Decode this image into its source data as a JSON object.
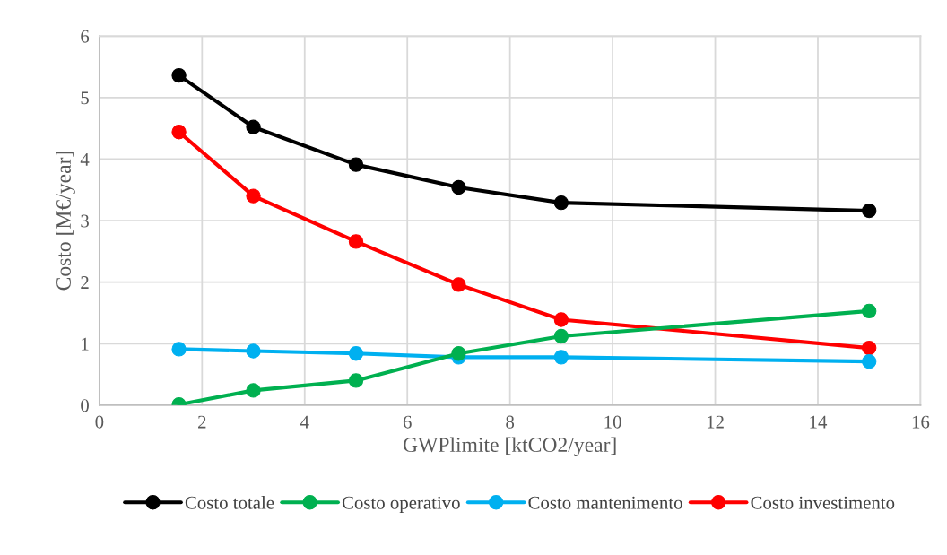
{
  "chart_data": {
    "type": "line",
    "xlabel": "GWPlimite [ktCO2/year]",
    "ylabel": "Costo [M€/year]",
    "x": [
      1.55,
      3,
      5,
      7,
      9,
      15
    ],
    "series": [
      {
        "name": "Costo totale",
        "color": "#000000",
        "values": [
          5.36,
          4.52,
          3.91,
          3.54,
          3.29,
          3.16
        ]
      },
      {
        "name": "Costo operativo",
        "color": "#00b050",
        "values": [
          0.01,
          0.24,
          0.4,
          0.84,
          1.12,
          1.53
        ]
      },
      {
        "name": "Costo mantenimento",
        "color": "#00b0f0",
        "values": [
          0.91,
          0.88,
          0.84,
          0.78,
          0.78,
          0.71
        ]
      },
      {
        "name": "Costo investimento",
        "color": "#ff0000",
        "values": [
          4.44,
          3.4,
          2.66,
          1.96,
          1.39,
          0.93
        ]
      }
    ],
    "xlim": [
      0,
      16
    ],
    "xticks": [
      0,
      2,
      4,
      6,
      8,
      10,
      12,
      14,
      16
    ],
    "ylim": [
      0,
      6
    ],
    "yticks": [
      0,
      1,
      2,
      3,
      4,
      5,
      6
    ],
    "grid": true,
    "legend": "bottom",
    "marker": "circle",
    "line_style": "solid"
  }
}
